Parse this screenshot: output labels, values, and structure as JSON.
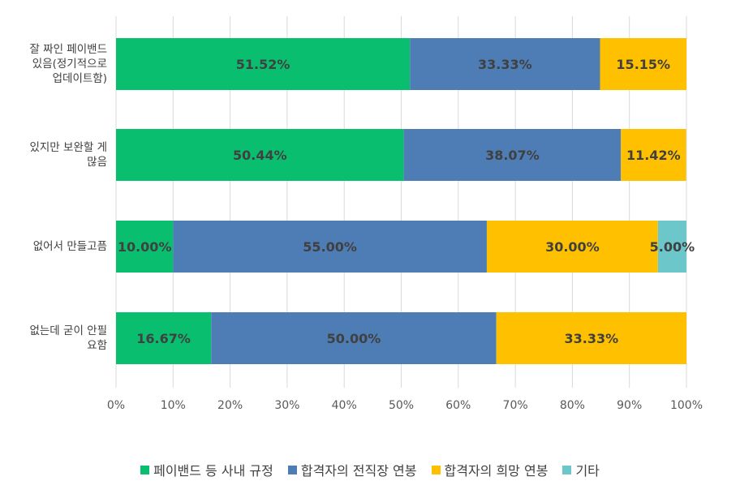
{
  "chart_data": {
    "type": "bar",
    "orientation": "horizontal",
    "stacked": true,
    "percent_stacked": true,
    "categories": [
      "잘 짜인 페이밴드 있음(정기적으로 업데이트함)",
      "있지만 보완할 게 많음",
      "없어서 만들고픔",
      "없는데 굳이 안필요함"
    ],
    "category_lines": [
      [
        "잘 짜인 페이밴드",
        "있음(정기적으로",
        "업데이트함)"
      ],
      [
        "있지만 보완할 게",
        "많음"
      ],
      [
        "없어서 만들고픔"
      ],
      [
        "없는데 굳이 안필",
        "요함"
      ]
    ],
    "series": [
      {
        "name": "페이밴드 등 사내 규정",
        "color": "#09BF6F",
        "values": [
          51.52,
          50.44,
          10.0,
          16.67
        ],
        "labels": [
          "51.52%",
          "50.44%",
          "10.00%",
          "16.67%"
        ]
      },
      {
        "name": "합격자의 전직장 연봉",
        "color": "#4E7DB5",
        "values": [
          33.33,
          38.07,
          55.0,
          50.0
        ],
        "labels": [
          "33.33%",
          "38.07%",
          "55.00%",
          "50.00%"
        ]
      },
      {
        "name": "합격자의 희망 연봉",
        "color": "#FFC000",
        "values": [
          15.15,
          11.42,
          30.0,
          33.33
        ],
        "labels": [
          "15.15%",
          "11.42%",
          "30.00%",
          "33.33%"
        ]
      },
      {
        "name": "기타",
        "color": "#6CC7CB",
        "values": [
          0,
          0,
          5.0,
          0
        ],
        "labels": [
          "",
          "",
          "5.00%",
          ""
        ]
      }
    ],
    "xlim": [
      0,
      100
    ],
    "x_ticks": [
      "0%",
      "10%",
      "20%",
      "30%",
      "40%",
      "50%",
      "60%",
      "70%",
      "80%",
      "90%",
      "100%"
    ],
    "grid": true,
    "legend_position": "bottom"
  }
}
